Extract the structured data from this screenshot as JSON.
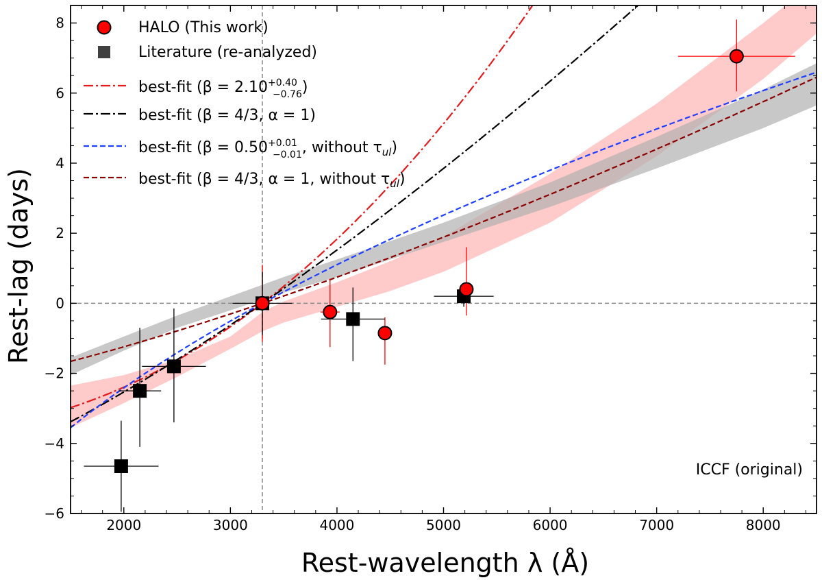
{
  "chart_data": {
    "type": "scatter",
    "xlabel": "Rest-wavelength λ (Å)",
    "ylabel": "Rest-lag (days)",
    "xlim": [
      1500,
      8500
    ],
    "ylim": [
      -6,
      8.5
    ],
    "xticks": [
      2000,
      3000,
      4000,
      5000,
      6000,
      7000,
      8000
    ],
    "yticks": [
      -6,
      -4,
      -2,
      0,
      2,
      4,
      6,
      8
    ],
    "annotation": "ICCF (original)",
    "reference_lines": {
      "x": 3300,
      "y": 0
    },
    "colors": {
      "halo": "#ff0000",
      "lit": "#000000",
      "fit_red": "#e41a1c",
      "fit_black": "#000000",
      "fit_blue": "#1f3fff",
      "fit_darkred": "#8b0000",
      "band_red": "#ffb3b3",
      "band_gray": "#b0b0b0"
    },
    "legend": [
      {
        "key": "halo",
        "label": "HALO (This work)"
      },
      {
        "key": "lit",
        "label": "Literature (re-analyzed)"
      },
      {
        "key": "fit_red",
        "label": "best-fit (β = 2.10 +0.40 −0.76)",
        "prefix": "best-fit (",
        "sym": "β = 2.10",
        "sup": "+0.40",
        "sub": "−0.76",
        "suffix": ")"
      },
      {
        "key": "fit_black",
        "label": "best-fit (β = 4/3, α = 1)"
      },
      {
        "key": "fit_blue",
        "label": "best-fit (β = 0.50 +0.01 −0.01, without τul)",
        "prefix": "best-fit (",
        "sym": "β = 0.50",
        "sup": "+0.01",
        "sub": "−0.01",
        "suffix": ", without τ",
        "suffix_sub": "ul",
        "suffix_end": ")"
      },
      {
        "key": "fit_darkred",
        "label": "best-fit (β = 4/3, α = 1, without τul)",
        "prefix": "best-fit (β = 4/3, α = 1, without τ",
        "suffix_sub": "ul",
        "suffix_end": ")"
      }
    ],
    "series": [
      {
        "name": "HALO (This work)",
        "marker": "circle",
        "points": [
          {
            "x": 3300,
            "y": 0.0,
            "xerr": 0,
            "yerr": [
              1.1,
              1.1
            ]
          },
          {
            "x": 3935,
            "y": -0.25,
            "xerr": 90,
            "yerr": [
              1.0,
              0.95
            ]
          },
          {
            "x": 4450,
            "y": -0.85,
            "xerr": 0,
            "yerr": [
              0.9,
              0.45
            ]
          },
          {
            "x": 5215,
            "y": 0.4,
            "xerr": 0,
            "yerr": [
              0.75,
              1.2
            ]
          },
          {
            "x": 7750,
            "y": 7.05,
            "xerr": 550,
            "yerr": [
              1.0,
              1.05
            ]
          }
        ]
      },
      {
        "name": "Literature (re-analyzed)",
        "marker": "square",
        "points": [
          {
            "x": 1975,
            "y": -4.65,
            "xerr": 350,
            "yerr": [
              1.3,
              1.3
            ]
          },
          {
            "x": 2150,
            "y": -2.5,
            "xerr": 200,
            "yerr": [
              1.6,
              1.8
            ]
          },
          {
            "x": 2470,
            "y": -1.8,
            "xerr": 300,
            "yerr": [
              1.6,
              1.65
            ]
          },
          {
            "x": 3300,
            "y": 0.0,
            "xerr": 280,
            "yerr": [
              0.9,
              0.9
            ]
          },
          {
            "x": 4150,
            "y": -0.45,
            "xerr": 300,
            "yerr": [
              1.2,
              0.9
            ]
          },
          {
            "x": 5190,
            "y": 0.2,
            "xerr": 280,
            "yerr": [
              0.3,
              0.3
            ]
          }
        ]
      }
    ],
    "fits": [
      {
        "key": "fit_red",
        "style": "dashdot",
        "model": "power",
        "beta": 2.1,
        "ref_x": 3300,
        "amp": 3.68,
        "offset": -3.68,
        "band": {
          "x": [
            1500,
            2000,
            2500,
            3000,
            3300,
            3500,
            4000,
            4500,
            5000,
            6000,
            7000,
            8000,
            8500
          ],
          "low": [
            -3.55,
            -2.85,
            -2.1,
            -1.3,
            -0.8,
            -0.55,
            -0.1,
            0.35,
            0.9,
            2.3,
            4.2,
            6.4,
            7.7
          ],
          "high": [
            -2.35,
            -2.05,
            -1.6,
            -0.95,
            -0.25,
            0.05,
            0.6,
            1.2,
            1.9,
            3.7,
            5.7,
            8.0,
            9.2
          ]
        }
      },
      {
        "key": "fit_black",
        "style": "dashdot",
        "model": "power",
        "beta": 1.3333,
        "ref_x": 3300,
        "amp": 5.2,
        "offset": -5.2,
        "band": {
          "x": [
            1500,
            2000,
            2500,
            3000,
            3500,
            4000,
            5000,
            6000,
            7000,
            8000,
            8500
          ],
          "low": [
            -2.05,
            -1.35,
            -0.7,
            -0.2,
            0.3,
            0.75,
            1.75,
            2.75,
            3.85,
            5.0,
            5.65
          ],
          "high": [
            -1.55,
            -0.95,
            -0.35,
            0.2,
            0.75,
            1.25,
            2.3,
            3.45,
            4.75,
            6.1,
            6.85
          ]
        }
      },
      {
        "key": "fit_blue",
        "style": "dashed",
        "model": "power",
        "beta": 0.5,
        "ref_x": 3300,
        "amp": 10.9,
        "offset": -10.9
      },
      {
        "key": "fit_darkred",
        "style": "dashed",
        "model": "power",
        "beta": 1.3333,
        "ref_x": 3300,
        "amp": 2.55,
        "offset": -2.55
      }
    ]
  }
}
